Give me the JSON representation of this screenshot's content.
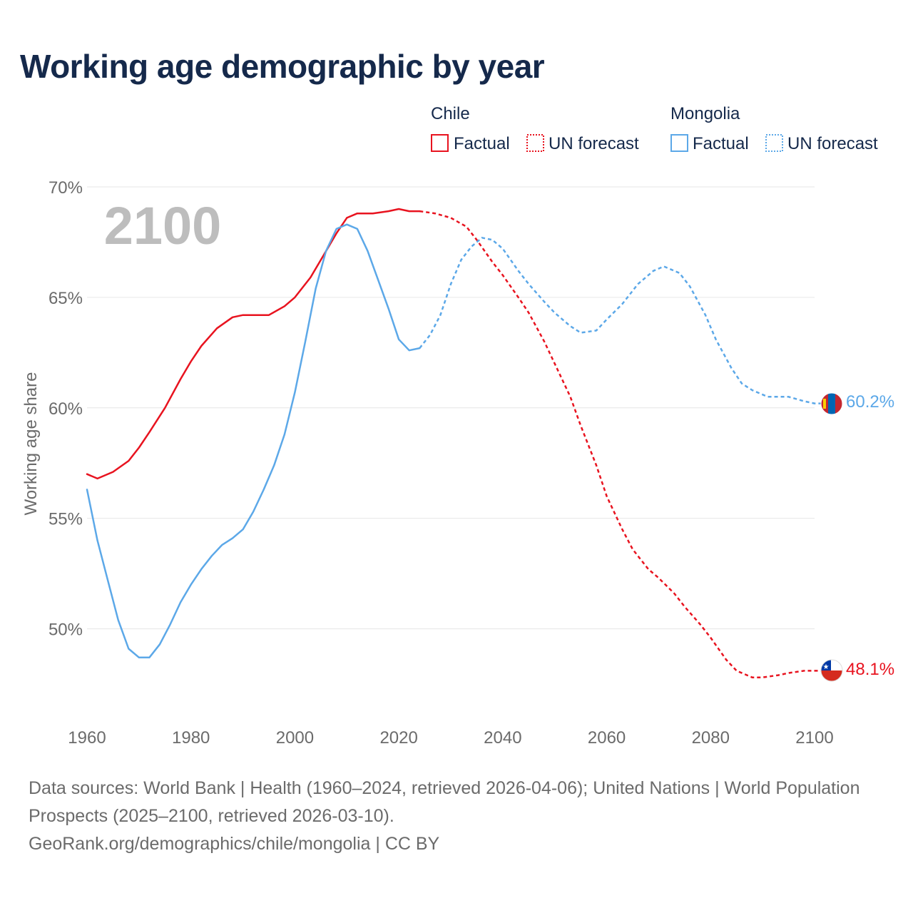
{
  "title": "Working age demographic by year",
  "year_watermark": "2100",
  "legend": {
    "groups": [
      {
        "country": "Chile",
        "factual": "Factual",
        "forecast": "UN forecast",
        "color": "#e8131f"
      },
      {
        "country": "Mongolia",
        "factual": "Factual",
        "forecast": "UN forecast",
        "color": "#5ca8e8"
      }
    ]
  },
  "footer": {
    "sources": "Data sources: World Bank | Health (1960–2024, retrieved 2026-04-06); United Nations | World Population Prospects (2025–2100, retrieved 2026-03-10).",
    "attribution": "GeoRank.org/demographics/chile/mongolia | CC BY"
  },
  "colors": {
    "title": "#15294b",
    "grid": "#e6e6e6",
    "axis_text": "#6b6b6b",
    "watermark": "#bdbdbd"
  },
  "chart_data": {
    "type": "line",
    "title": "Working age demographic by year",
    "xlabel": "",
    "ylabel": "Working age share",
    "xlim": [
      1960,
      2100
    ],
    "ylim": [
      46.5,
      70
    ],
    "x_ticks": [
      1960,
      1980,
      2000,
      2020,
      2040,
      2060,
      2080,
      2100
    ],
    "y_ticks": [
      50,
      55,
      60,
      65,
      70
    ],
    "y_tick_labels": [
      "50%",
      "55%",
      "60%",
      "65%",
      "70%"
    ],
    "factual_end_year": 2024,
    "series": [
      {
        "name": "Chile",
        "color": "#e8131f",
        "end_label": "48.1%",
        "flag": "chile-flag",
        "points": [
          [
            1960,
            57.0
          ],
          [
            1962,
            56.8
          ],
          [
            1965,
            57.1
          ],
          [
            1968,
            57.6
          ],
          [
            1970,
            58.2
          ],
          [
            1972,
            58.9
          ],
          [
            1975,
            60.0
          ],
          [
            1978,
            61.3
          ],
          [
            1980,
            62.1
          ],
          [
            1982,
            62.8
          ],
          [
            1985,
            63.6
          ],
          [
            1988,
            64.1
          ],
          [
            1990,
            64.2
          ],
          [
            1992,
            64.2
          ],
          [
            1995,
            64.2
          ],
          [
            1998,
            64.6
          ],
          [
            2000,
            65.0
          ],
          [
            2003,
            65.9
          ],
          [
            2005,
            66.7
          ],
          [
            2008,
            67.9
          ],
          [
            2010,
            68.6
          ],
          [
            2012,
            68.8
          ],
          [
            2015,
            68.8
          ],
          [
            2018,
            68.9
          ],
          [
            2020,
            69.0
          ],
          [
            2022,
            68.9
          ],
          [
            2024,
            68.9
          ],
          [
            2027,
            68.8
          ],
          [
            2030,
            68.6
          ],
          [
            2033,
            68.2
          ],
          [
            2035,
            67.6
          ],
          [
            2038,
            66.6
          ],
          [
            2040,
            66.0
          ],
          [
            2043,
            65.0
          ],
          [
            2045,
            64.3
          ],
          [
            2048,
            63.0
          ],
          [
            2050,
            62.0
          ],
          [
            2053,
            60.5
          ],
          [
            2055,
            59.2
          ],
          [
            2058,
            57.4
          ],
          [
            2060,
            56.0
          ],
          [
            2063,
            54.5
          ],
          [
            2065,
            53.6
          ],
          [
            2068,
            52.7
          ],
          [
            2070,
            52.3
          ],
          [
            2073,
            51.6
          ],
          [
            2075,
            51.0
          ],
          [
            2078,
            50.2
          ],
          [
            2080,
            49.6
          ],
          [
            2083,
            48.6
          ],
          [
            2085,
            48.1
          ],
          [
            2088,
            47.8
          ],
          [
            2090,
            47.8
          ],
          [
            2093,
            47.9
          ],
          [
            2095,
            48.0
          ],
          [
            2098,
            48.1
          ],
          [
            2100,
            48.1
          ]
        ]
      },
      {
        "name": "Mongolia",
        "color": "#5ca8e8",
        "end_label": "60.2%",
        "flag": "mongolia-flag",
        "points": [
          [
            1960,
            56.3
          ],
          [
            1962,
            54.0
          ],
          [
            1964,
            52.2
          ],
          [
            1966,
            50.4
          ],
          [
            1968,
            49.1
          ],
          [
            1970,
            48.7
          ],
          [
            1972,
            48.7
          ],
          [
            1974,
            49.3
          ],
          [
            1976,
            50.2
          ],
          [
            1978,
            51.2
          ],
          [
            1980,
            52.0
          ],
          [
            1982,
            52.7
          ],
          [
            1984,
            53.3
          ],
          [
            1986,
            53.8
          ],
          [
            1988,
            54.1
          ],
          [
            1990,
            54.5
          ],
          [
            1992,
            55.3
          ],
          [
            1994,
            56.3
          ],
          [
            1996,
            57.4
          ],
          [
            1998,
            58.8
          ],
          [
            2000,
            60.7
          ],
          [
            2002,
            63.0
          ],
          [
            2004,
            65.4
          ],
          [
            2006,
            67.1
          ],
          [
            2008,
            68.1
          ],
          [
            2010,
            68.3
          ],
          [
            2012,
            68.1
          ],
          [
            2014,
            67.1
          ],
          [
            2016,
            65.8
          ],
          [
            2018,
            64.5
          ],
          [
            2020,
            63.1
          ],
          [
            2022,
            62.6
          ],
          [
            2024,
            62.7
          ],
          [
            2026,
            63.3
          ],
          [
            2028,
            64.2
          ],
          [
            2030,
            65.6
          ],
          [
            2032,
            66.7
          ],
          [
            2034,
            67.3
          ],
          [
            2036,
            67.7
          ],
          [
            2038,
            67.6
          ],
          [
            2040,
            67.2
          ],
          [
            2043,
            66.2
          ],
          [
            2045,
            65.6
          ],
          [
            2048,
            64.8
          ],
          [
            2050,
            64.3
          ],
          [
            2053,
            63.7
          ],
          [
            2055,
            63.4
          ],
          [
            2058,
            63.5
          ],
          [
            2060,
            64.0
          ],
          [
            2063,
            64.7
          ],
          [
            2066,
            65.6
          ],
          [
            2069,
            66.2
          ],
          [
            2071,
            66.4
          ],
          [
            2074,
            66.1
          ],
          [
            2076,
            65.5
          ],
          [
            2079,
            64.2
          ],
          [
            2081,
            63.1
          ],
          [
            2084,
            61.8
          ],
          [
            2086,
            61.1
          ],
          [
            2088,
            60.8
          ],
          [
            2091,
            60.5
          ],
          [
            2093,
            60.5
          ],
          [
            2095,
            60.5
          ],
          [
            2098,
            60.3
          ],
          [
            2100,
            60.2
          ]
        ]
      }
    ]
  }
}
